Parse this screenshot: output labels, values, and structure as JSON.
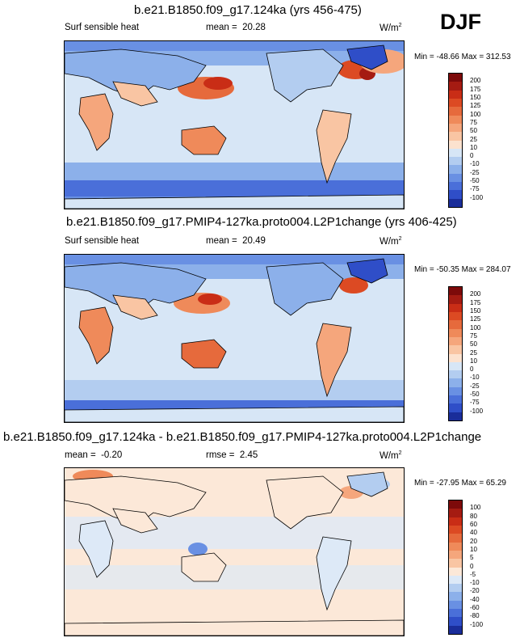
{
  "season": "DJF",
  "units": "W/m",
  "units_sup": "2",
  "panels": [
    {
      "title": "b.e21.B1850.f09_g17.124ka (yrs 456-475)",
      "variable": "Surf sensible heat",
      "stat_label": "mean =",
      "stat_value": "20.28",
      "minmax": "Min = -48.66 Max = 312.53",
      "levels": [
        "200",
        "175",
        "150",
        "125",
        "100",
        "75",
        "50",
        "25",
        "10",
        "0",
        "-10",
        "-25",
        "-50",
        "-75",
        "-100"
      ],
      "colors": [
        "#7d0a0a",
        "#a51b12",
        "#c92d16",
        "#dc4a23",
        "#e66a3c",
        "#ef8a5a",
        "#f5a67c",
        "#f9c5a3",
        "#fce2cf",
        "#d7e6f6",
        "#b3cdf0",
        "#8cb0ea",
        "#6990e3",
        "#4a6fd9",
        "#2f4ec8",
        "#1a2d9a"
      ]
    },
    {
      "title": "b.e21.B1850.f09_g17.PMIP4-127ka.proto004.L2P1change (yrs 406-425)",
      "variable": "Surf sensible heat",
      "stat_label": "mean =",
      "stat_value": "20.49",
      "minmax": "Min = -50.35 Max = 284.07",
      "levels": [
        "200",
        "175",
        "150",
        "125",
        "100",
        "75",
        "50",
        "25",
        "10",
        "0",
        "-10",
        "-25",
        "-50",
        "-75",
        "-100"
      ],
      "colors": [
        "#7d0a0a",
        "#a51b12",
        "#c92d16",
        "#dc4a23",
        "#e66a3c",
        "#ef8a5a",
        "#f5a67c",
        "#f9c5a3",
        "#fce2cf",
        "#d7e6f6",
        "#b3cdf0",
        "#8cb0ea",
        "#6990e3",
        "#4a6fd9",
        "#2f4ec8",
        "#1a2d9a"
      ]
    },
    {
      "title": "b.e21.B1850.f09_g17.124ka - b.e21.B1850.f09_g17.PMIP4-127ka.proto004.L2P1change",
      "variable": "",
      "stat_label": "mean =",
      "stat_value": "-0.20",
      "rmse_label": "rmse =",
      "rmse_value": "2.45",
      "minmax": "Min = -27.95 Max = 65.29",
      "levels": [
        "100",
        "80",
        "60",
        "40",
        "20",
        "10",
        "5",
        "0",
        "-5",
        "-10",
        "-20",
        "-40",
        "-60",
        "-80",
        "-100"
      ],
      "colors": [
        "#7d0a0a",
        "#a51b12",
        "#c92d16",
        "#dc4a23",
        "#e66a3c",
        "#ef8a5a",
        "#f5a67c",
        "#f9c5a3",
        "#fce8d8",
        "#dde9f7",
        "#b3cdf0",
        "#8cb0ea",
        "#6990e3",
        "#4a6fd9",
        "#2f4ec8",
        "#1a2d9a"
      ]
    }
  ]
}
